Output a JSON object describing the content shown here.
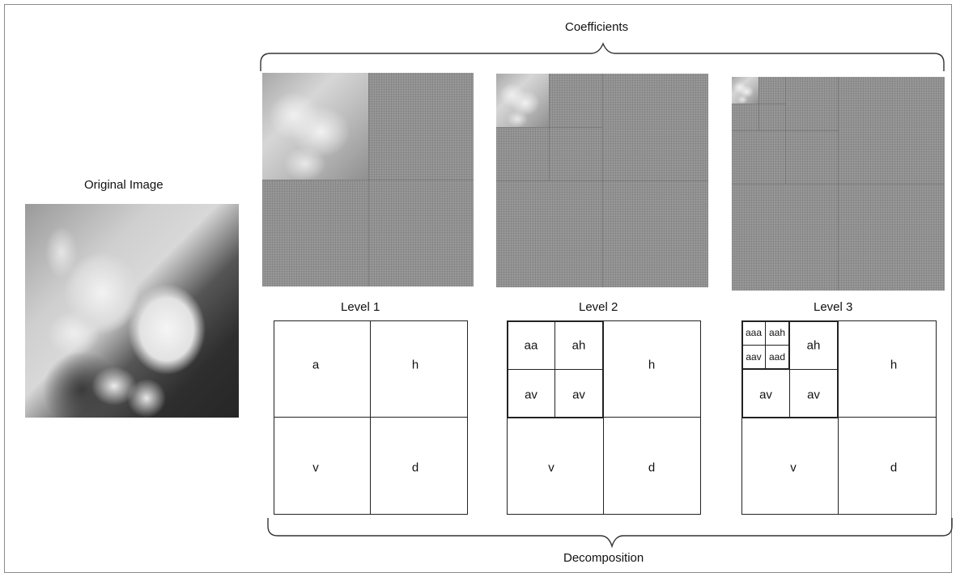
{
  "title_original": "Original Image",
  "title_coefficients": "Coefficients",
  "title_decomposition": "Decomposition",
  "levels": {
    "l1": "Level 1",
    "l2": "Level 2",
    "l3": "Level 3"
  },
  "subbands": {
    "a": "a",
    "h": "h",
    "v": "v",
    "d": "d",
    "aa": "aa",
    "ah": "ah",
    "av": "av",
    "aaa": "aaa",
    "aah": "aah",
    "aav": "aav",
    "aad": "aad"
  }
}
